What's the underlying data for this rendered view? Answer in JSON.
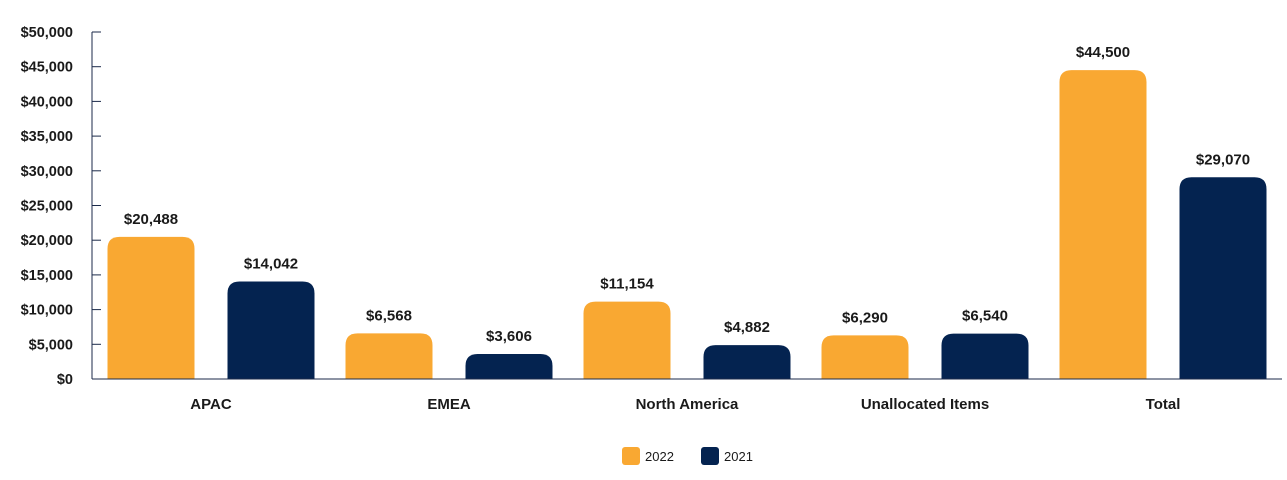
{
  "chart_data": {
    "type": "bar",
    "categories": [
      "APAC",
      "EMEA",
      "North America",
      "Unallocated Items",
      "Total"
    ],
    "series": [
      {
        "name": "2022",
        "color": "#F9A832",
        "values": [
          20488,
          6568,
          11154,
          6290,
          44500
        ],
        "labels": [
          "$20,488",
          "$6,568",
          "$11,154",
          "$6,290",
          "$44,500"
        ]
      },
      {
        "name": "2021",
        "color": "#042350",
        "values": [
          14042,
          3606,
          4882,
          6540,
          29070
        ],
        "labels": [
          "$14,042",
          "$3,606",
          "$4,882",
          "$6,540",
          "$29,070"
        ]
      }
    ],
    "ylim": [
      0,
      50000
    ],
    "yticks": [
      0,
      5000,
      10000,
      15000,
      20000,
      25000,
      30000,
      35000,
      40000,
      45000,
      50000
    ],
    "ytick_labels": [
      "$0",
      "$5,000",
      "$10,000",
      "$15,000",
      "$20,000",
      "$25,000",
      "$30,000",
      "$35,000",
      "$40,000",
      "$45,000",
      "$50,000"
    ],
    "legend_position": "bottom-center",
    "grid": false,
    "title": "",
    "xlabel": "",
    "ylabel": ""
  }
}
